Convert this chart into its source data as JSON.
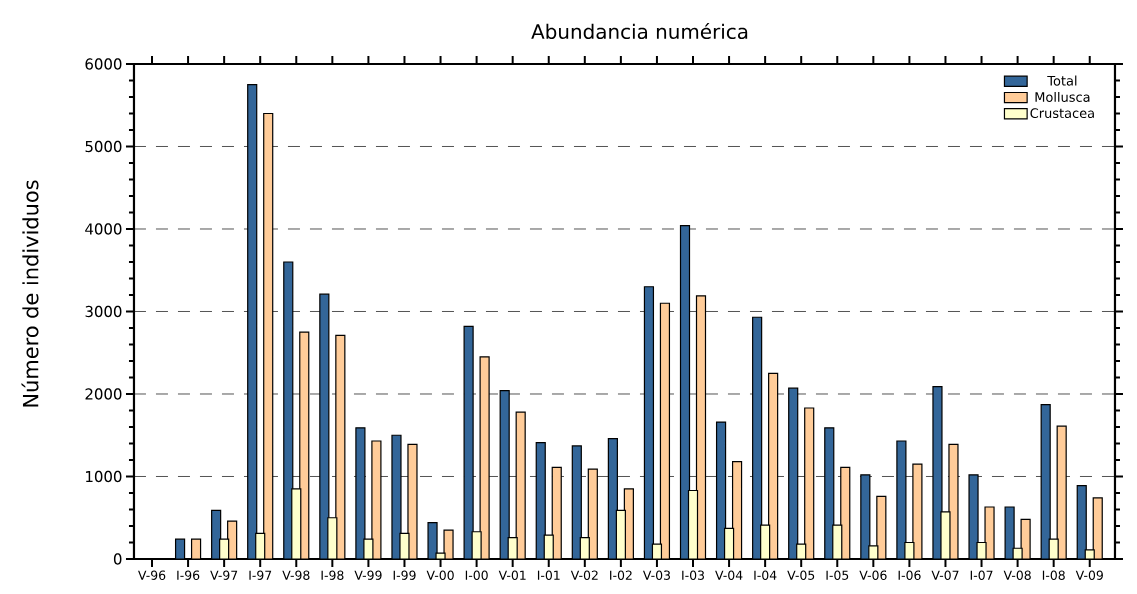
{
  "chart_data": {
    "type": "bar",
    "title": "Abundancia numérica",
    "ylabel": "Número de individuos",
    "categories": [
      "V-96",
      "I-96",
      "V-97",
      "I-97",
      "V-98",
      "I-98",
      "V-99",
      "I-99",
      "V-00",
      "I-00",
      "V-01",
      "I-01",
      "V-02",
      "I-02",
      "V-03",
      "I-03",
      "V-04",
      "I-04",
      "V-05",
      "I-05",
      "V-06",
      "I-06",
      "V-07",
      "I-07",
      "V-08",
      "I-08",
      "V-09"
    ],
    "series": [
      {
        "name": "Total",
        "color": "#336699",
        "values": [
          null,
          240,
          590,
          5750,
          3600,
          3210,
          1590,
          1500,
          440,
          2820,
          2040,
          1410,
          1370,
          1460,
          3300,
          4040,
          1660,
          2930,
          2070,
          1590,
          1020,
          1430,
          2090,
          1020,
          630,
          1870,
          890
        ]
      },
      {
        "name": "Mollusca",
        "color": "#ffcc99",
        "values": [
          null,
          240,
          460,
          5400,
          2750,
          2710,
          1430,
          1390,
          350,
          2450,
          1780,
          1110,
          1090,
          850,
          3100,
          3190,
          1180,
          2250,
          1830,
          1110,
          760,
          1150,
          1390,
          630,
          480,
          1610,
          740
        ]
      },
      {
        "name": "Crustacea",
        "color": "#ffffcc",
        "values": [
          null,
          null,
          240,
          310,
          850,
          500,
          240,
          310,
          70,
          330,
          260,
          290,
          260,
          590,
          180,
          830,
          370,
          410,
          180,
          410,
          160,
          200,
          570,
          200,
          130,
          240,
          110
        ]
      }
    ],
    "ylim": [
      0,
      6000
    ],
    "yticks": [
      0,
      1000,
      2000,
      3000,
      4000,
      5000,
      6000
    ],
    "grid": "y",
    "legend": "top right"
  }
}
